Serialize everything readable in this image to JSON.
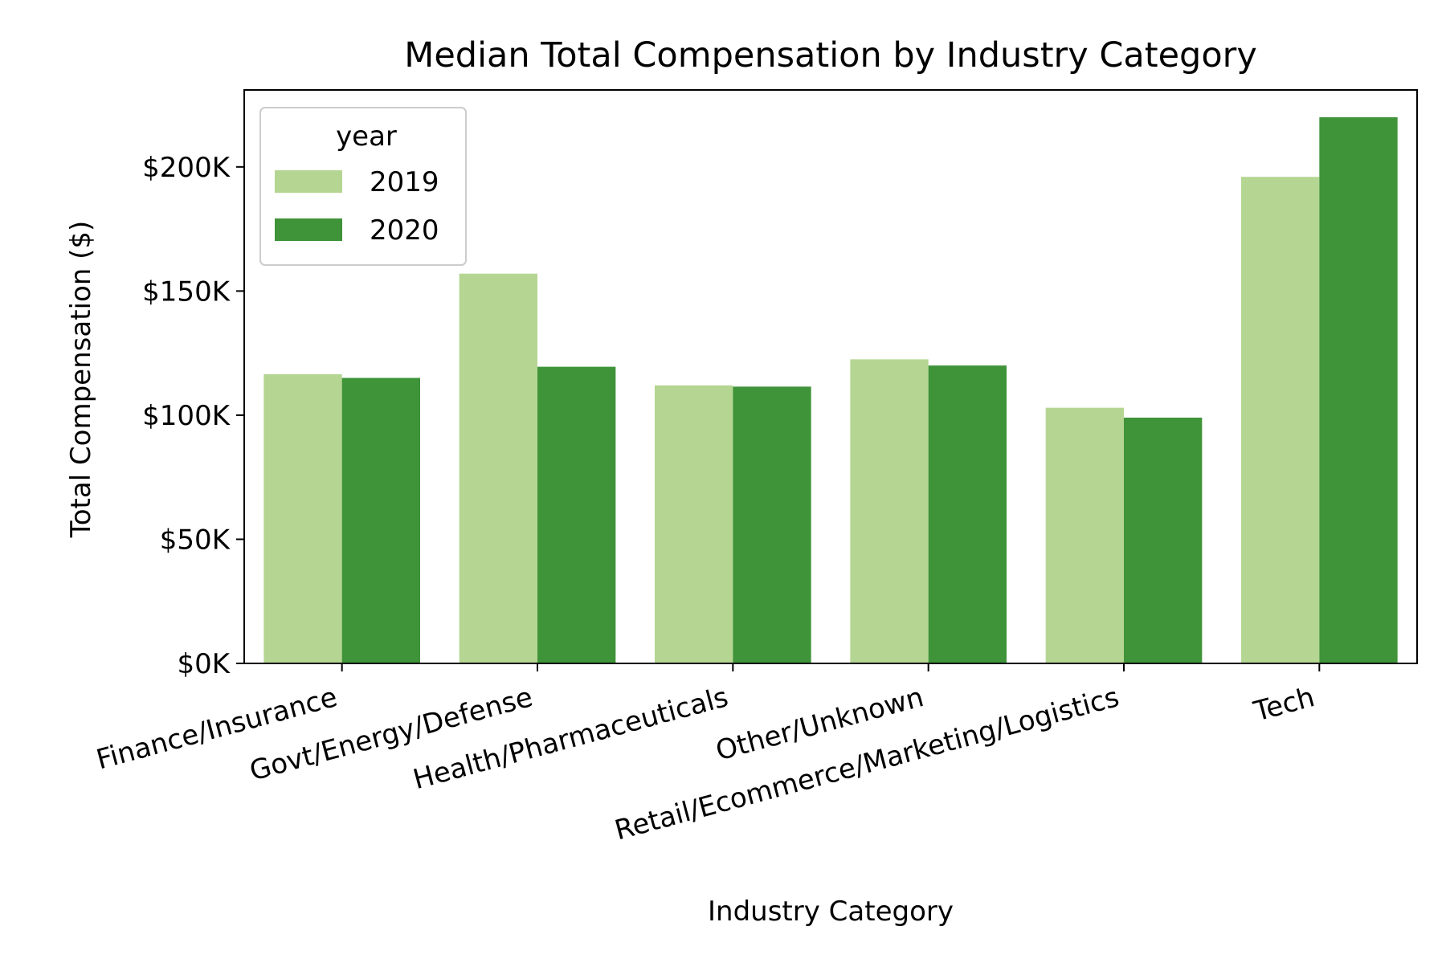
{
  "chart_data": {
    "type": "bar",
    "title": "Median Total Compensation by Industry Category",
    "xlabel": "Industry Category",
    "ylabel": "Total Compensation ($)",
    "categories": [
      "Finance/Insurance",
      "Govt/Energy/Defense",
      "Health/Pharmaceuticals",
      "Other/Unknown",
      "Retail/Ecommerce/Marketing/Logistics",
      "Tech"
    ],
    "series": [
      {
        "name": "2019",
        "color": "#b5d693",
        "values": [
          116500,
          157000,
          112000,
          122500,
          103000,
          196000
        ]
      },
      {
        "name": "2020",
        "color": "#3f9339",
        "values": [
          115000,
          119500,
          111500,
          120000,
          99000,
          220000
        ]
      }
    ],
    "ylim": [
      0,
      231000
    ],
    "yticks": [
      0,
      50000,
      100000,
      150000,
      200000
    ],
    "ytick_labels": [
      "$0K",
      "$50K",
      "$100K",
      "$150K",
      "$200K"
    ],
    "legend": {
      "title": "year",
      "position": "top-left"
    },
    "grid": false
  }
}
